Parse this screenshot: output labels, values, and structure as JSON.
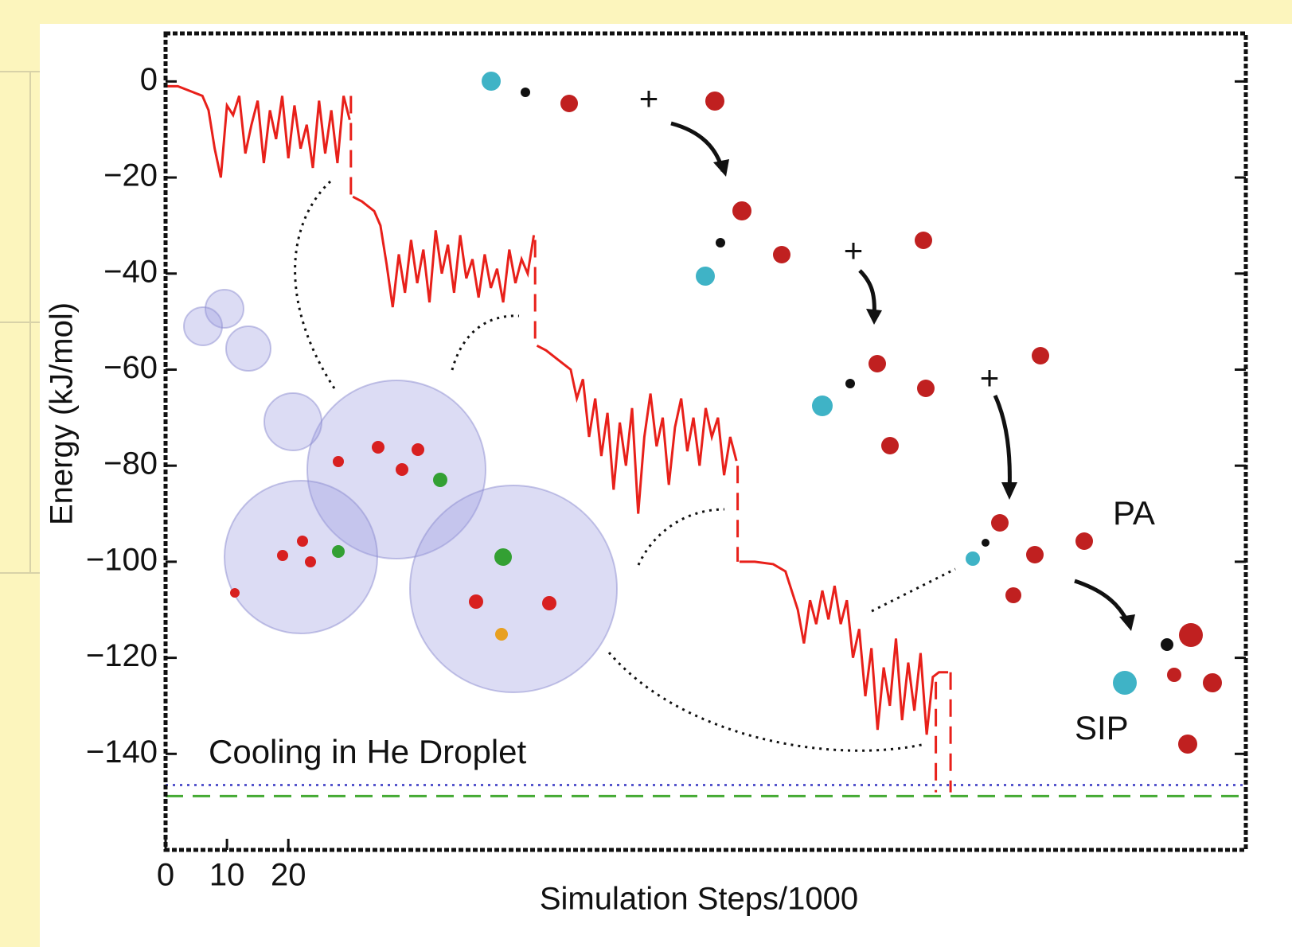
{
  "chart_data": {
    "type": "line",
    "xlabel": "Simulation Steps/1000",
    "ylabel": "Energy (kJ/mol)",
    "xlim": [
      0,
      176
    ],
    "ylim": [
      -160,
      10
    ],
    "xticks": [
      0,
      10,
      20
    ],
    "yticks": [
      {
        "value": 0,
        "label": "0"
      },
      {
        "value": -20,
        "label": "−20"
      },
      {
        "value": -40,
        "label": "−40"
      },
      {
        "value": -60,
        "label": "−60"
      },
      {
        "value": -80,
        "label": "−80"
      },
      {
        "value": -100,
        "label": "−100"
      },
      {
        "value": -120,
        "label": "−120"
      },
      {
        "value": -140,
        "label": "−140"
      }
    ],
    "series": [
      {
        "color": "#e8201a",
        "style": "solid",
        "x": [
          0,
          2,
          4,
          6,
          7,
          8,
          9,
          10,
          11,
          12,
          13,
          14,
          15,
          16,
          17,
          18,
          19,
          20,
          21,
          22,
          23,
          24,
          25,
          26,
          27,
          28,
          29,
          30,
          30.2,
          30.5,
          32,
          34,
          35,
          36,
          37,
          38,
          39,
          40,
          41,
          42,
          43,
          44,
          45,
          46,
          47,
          48,
          49,
          50,
          51,
          52,
          53,
          54,
          55,
          56,
          57,
          58,
          59,
          60,
          60.2,
          60.5,
          62,
          64,
          66,
          67,
          68,
          69,
          70,
          71,
          72,
          73,
          74,
          75,
          76,
          77,
          78,
          79,
          80,
          81,
          82,
          83,
          84,
          85,
          86,
          87,
          88,
          89,
          90,
          91,
          92,
          93,
          93.2,
          93.5,
          96,
          99,
          101,
          103,
          104,
          105,
          106,
          107,
          108,
          109,
          110,
          111,
          112,
          113,
          114,
          115,
          116,
          117,
          118,
          119,
          120,
          121,
          122,
          123,
          124,
          125,
          126,
          127.5
        ],
        "values": [
          -1,
          -1,
          -2,
          -3,
          -6,
          -14,
          -20,
          -5,
          -7,
          -3,
          -15,
          -9,
          -4,
          -17,
          -6,
          -12,
          -3,
          -16,
          -5,
          -14,
          -9,
          -18,
          -4,
          -15,
          -6,
          -17,
          -3,
          -8,
          null,
          -24,
          -25,
          -27,
          -30,
          -38,
          -47,
          -36,
          -44,
          -33,
          -42,
          -35,
          -46,
          -31,
          -40,
          -34,
          -44,
          -32,
          -41,
          -37,
          -45,
          -36,
          -43,
          -39,
          -46,
          -35,
          -42,
          -37,
          -40,
          -32,
          null,
          -55,
          -56,
          -58,
          -60,
          -66,
          -62,
          -74,
          -66,
          -78,
          -69,
          -85,
          -71,
          -80,
          -68,
          -90,
          -74,
          -65,
          -76,
          -70,
          -84,
          -72,
          -66,
          -77,
          -70,
          -80,
          -68,
          -74,
          -70,
          -82,
          -74,
          -79,
          null,
          -100,
          -100,
          -100.5,
          -102,
          -110,
          -117,
          -108,
          -113,
          -106,
          -112,
          -105,
          -113,
          -108,
          -120,
          -114,
          -128,
          -118,
          -135,
          -122,
          -130,
          -116,
          -133,
          -121,
          -131,
          -119,
          -136,
          -124,
          -123,
          -123
        ]
      },
      {
        "color": "#e8201a",
        "style": "dashed",
        "x": [
          30.2,
          30.2,
          30.3,
          60.2,
          60.2,
          60.3,
          93.2,
          93.2,
          93.3,
          125.5,
          125.5,
          126.5,
          127.9,
          127.9
        ],
        "values": [
          -3,
          -24,
          null,
          -33,
          -55,
          null,
          -80,
          -100,
          null,
          -125,
          -148,
          null,
          -123,
          -148
        ]
      }
    ],
    "hlines": [
      {
        "value": -146.5,
        "color": "#5555cc",
        "style": "dotted"
      },
      {
        "value": -148.8,
        "color": "#44aa33",
        "style": "dashed"
      }
    ],
    "annotations": [
      "Cooling in He Droplet",
      "PA",
      "SIP",
      "+",
      "+",
      "+"
    ]
  }
}
